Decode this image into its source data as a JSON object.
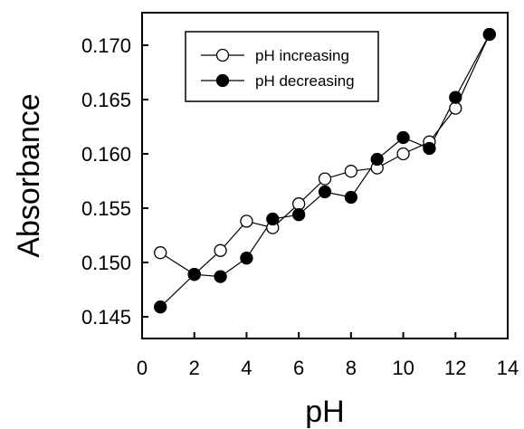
{
  "chart_data": {
    "type": "line",
    "title": "",
    "xlabel": "pH",
    "ylabel": "Absorbance",
    "xlim": [
      0,
      14
    ],
    "ylim": [
      0.143,
      0.173
    ],
    "xticks": [
      0,
      2,
      4,
      6,
      8,
      10,
      12,
      14
    ],
    "yticks": [
      0.145,
      0.15,
      0.155,
      0.16,
      0.165,
      0.17
    ],
    "xtick_labels": [
      "0",
      "2",
      "4",
      "6",
      "8",
      "10",
      "12",
      "14"
    ],
    "ytick_labels": [
      "0.145",
      "0.150",
      "0.155",
      "0.160",
      "0.165",
      "0.170"
    ],
    "grid": false,
    "legend_position": "top-left",
    "series": [
      {
        "name": "pH increasing",
        "marker": "open-circle",
        "x": [
          0.7,
          2.0,
          3.0,
          4.0,
          5.0,
          6.0,
          7.0,
          8.0,
          9.0,
          10.0,
          11.0,
          12.0,
          13.3
        ],
        "y": [
          0.1509,
          0.1489,
          0.1511,
          0.1538,
          0.1532,
          0.1554,
          0.1577,
          0.1584,
          0.1587,
          0.16,
          0.1611,
          0.1642,
          0.171
        ]
      },
      {
        "name": "pH decreasing",
        "marker": "filled-circle",
        "x": [
          0.7,
          2.0,
          3.0,
          4.0,
          5.0,
          6.0,
          7.0,
          8.0,
          9.0,
          10.0,
          11.0,
          12.0,
          13.3
        ],
        "y": [
          0.1459,
          0.1489,
          0.1487,
          0.1504,
          0.154,
          0.1544,
          0.1565,
          0.156,
          0.1595,
          0.1615,
          0.1605,
          0.1652,
          0.171
        ]
      }
    ]
  }
}
